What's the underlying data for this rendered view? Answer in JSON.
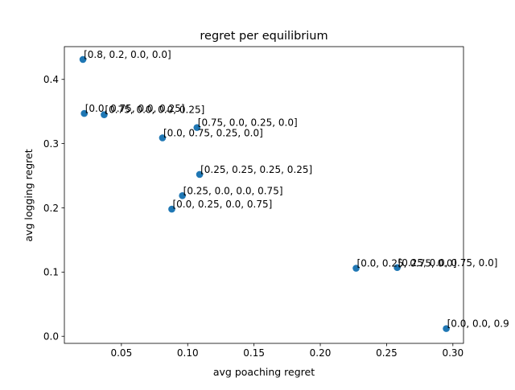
{
  "chart_data": {
    "type": "scatter",
    "title": "regret per equilibrium",
    "xlabel": "avg poaching regret",
    "ylabel": "avg logging regret",
    "xlim": [
      0.007,
      0.308
    ],
    "ylim": [
      -0.011,
      0.451
    ],
    "xticks": [
      0.05,
      0.1,
      0.15,
      0.2,
      0.25,
      0.3
    ],
    "xtick_labels": [
      "0.05",
      "0.10",
      "0.15",
      "0.20",
      "0.25",
      "0.30"
    ],
    "yticks": [
      0.0,
      0.1,
      0.2,
      0.3,
      0.4
    ],
    "ytick_labels": [
      "0.0",
      "0.1",
      "0.2",
      "0.3",
      "0.4"
    ],
    "grid": false,
    "marker_color": "#1f77b4",
    "points": [
      {
        "x": 0.021,
        "y": 0.431,
        "label": "[0.8, 0.2, 0.0, 0.0]"
      },
      {
        "x": 0.022,
        "y": 0.347,
        "label": "[0.0, 0.75, 0.0, 0.25]"
      },
      {
        "x": 0.037,
        "y": 0.345,
        "label": "[0.75, 0.0, 0.0, 0.25]"
      },
      {
        "x": 0.107,
        "y": 0.325,
        "label": "[0.75, 0.0, 0.25, 0.0]"
      },
      {
        "x": 0.081,
        "y": 0.309,
        "label": "[0.0, 0.75, 0.25, 0.0]"
      },
      {
        "x": 0.109,
        "y": 0.252,
        "label": "[0.25, 0.25, 0.25, 0.25]"
      },
      {
        "x": 0.096,
        "y": 0.219,
        "label": "[0.25, 0.0, 0.0, 0.75]"
      },
      {
        "x": 0.088,
        "y": 0.198,
        "label": "[0.0, 0.25, 0.0, 0.75]"
      },
      {
        "x": 0.227,
        "y": 0.106,
        "label": "[0.0, 0.25, 0.75, 0.0]"
      },
      {
        "x": 0.258,
        "y": 0.107,
        "label": "[0.25, 0.0, 0.75, 0.0]"
      },
      {
        "x": 0.295,
        "y": 0.012,
        "label": "[0.0, 0.0, 0.9"
      }
    ]
  }
}
